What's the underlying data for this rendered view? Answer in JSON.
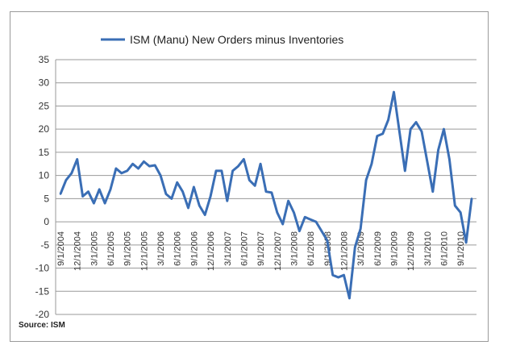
{
  "source": "Source: ISM",
  "chart_data": {
    "type": "line",
    "title": "",
    "xlabel": "",
    "ylabel": "",
    "ylim": [
      -20,
      35
    ],
    "yticks": [
      35,
      30,
      25,
      20,
      15,
      10,
      5,
      0,
      -5,
      -10,
      -15,
      -20
    ],
    "grid": true,
    "legend": "top-center",
    "color": "#3a6eb5",
    "tick_labels": [
      "9/1/2004",
      "12/1/2004",
      "3/1/2005",
      "6/1/2005",
      "9/1/2005",
      "12/1/2005",
      "3/1/2006",
      "6/1/2006",
      "9/1/2006",
      "12/1/2006",
      "3/1/2007",
      "6/1/2007",
      "9/1/2007",
      "12/1/2007",
      "3/1/2008",
      "6/1/2008",
      "9/1/2008",
      "12/1/2008",
      "3/1/2009",
      "6/1/2009",
      "9/1/2009",
      "12/1/2009",
      "3/1/2010",
      "6/1/2010",
      "9/1/2010"
    ],
    "series": [
      {
        "name": "ISM  (Manu) New Orders minus Inventories",
        "values": [
          6,
          9,
          10.5,
          13.5,
          5.5,
          6.5,
          4,
          7,
          4,
          7,
          11.5,
          10.5,
          11,
          12.5,
          11.5,
          13,
          12,
          12.2,
          10,
          6,
          5,
          8.5,
          6.5,
          3,
          7.5,
          3.5,
          1.5,
          5.5,
          11,
          11,
          4.5,
          11,
          12,
          13.5,
          9,
          7.8,
          12.5,
          6.5,
          6.3,
          2,
          -0.5,
          4.5,
          2,
          -2,
          1,
          0.5,
          0,
          -2,
          -4,
          -11.5,
          -12,
          -11.5,
          -16.5,
          -5.5,
          -1.5,
          9,
          12.5,
          18.5,
          19,
          22,
          28,
          19.5,
          11,
          20,
          21.5,
          19.5,
          13,
          6.5,
          15.5,
          20,
          13.5,
          3.5,
          2,
          -4.5,
          5
        ]
      }
    ]
  }
}
